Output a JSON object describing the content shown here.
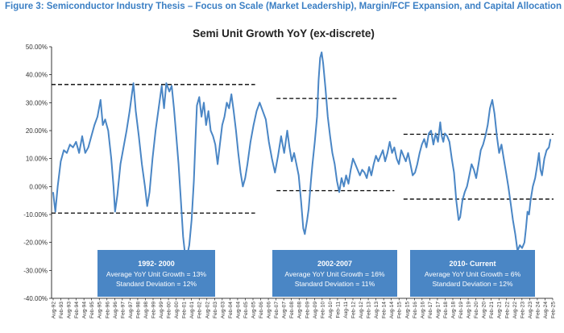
{
  "figure_title": "Figure 3: Semiconductor Industry Thesis – Focus on Scale (Market Leadership), Margin/FCF Expansion, and Capital Allocation",
  "colors": {
    "line": "#4a86c5",
    "box": "#4a86c5",
    "title_blue": "#3b7fc4",
    "axis": "#000000",
    "dash": "#000000"
  },
  "chart_data": {
    "type": "line",
    "title": "Semi Unit Growth YoY (ex-discrete)",
    "xlabel": "",
    "ylabel": "",
    "ylim": [
      -40,
      50
    ],
    "ytick_values": [
      50,
      40,
      30,
      20,
      10,
      0,
      -10,
      -20,
      -30,
      -40
    ],
    "ytick_labels": [
      "50.00%",
      "40.00%",
      "30.00%",
      "20.00%",
      "10.00%",
      "0.00%",
      "-10.00%",
      "-20.00%",
      "-30.00%",
      "-40.00%"
    ],
    "x_start": "Aug-92",
    "x_end": "Feb-25",
    "x_tick_labels": [
      "Aug-92",
      "Feb-93",
      "Aug-93",
      "Feb-94",
      "Aug-94",
      "Feb-95",
      "Aug-95",
      "Feb-96",
      "Aug-96",
      "Feb-97",
      "Aug-97",
      "Feb-98",
      "Aug-98",
      "Feb-99",
      "Aug-99",
      "Feb-00",
      "Aug-00",
      "Feb-01",
      "Aug-01",
      "Feb-02",
      "Aug-02",
      "Feb-03",
      "Aug-03",
      "Feb-04",
      "Aug-04",
      "Feb-05",
      "Aug-05",
      "Feb-06",
      "Aug-06",
      "Feb-07",
      "Aug-07",
      "Feb-08",
      "Aug-08",
      "Feb-09",
      "Aug-09",
      "Feb-10",
      "Aug-10",
      "Feb-11",
      "Aug-11",
      "Feb-12",
      "Aug-12",
      "Feb-13",
      "Aug-13",
      "Feb-14",
      "Aug-14",
      "Feb-15",
      "Aug-15",
      "Feb-16",
      "Aug-16",
      "Feb-17",
      "Aug-17",
      "Feb-18",
      "Aug-18",
      "Feb-19",
      "Aug-19",
      "Feb-20",
      "Aug-20",
      "Feb-21",
      "Aug-21",
      "Feb-22",
      "Aug-22",
      "Feb-23",
      "Aug-23",
      "Feb-24",
      "Aug-24",
      "Feb-25"
    ],
    "series": [
      {
        "name": "Semi Unit Growth YoY (ex-discrete)",
        "points": [
          [
            1992.6,
            -2
          ],
          [
            1992.75,
            -9
          ],
          [
            1992.9,
            0
          ],
          [
            1993.1,
            9
          ],
          [
            1993.3,
            13
          ],
          [
            1993.5,
            12
          ],
          [
            1993.7,
            15
          ],
          [
            1993.9,
            14
          ],
          [
            1994.1,
            16
          ],
          [
            1994.3,
            12
          ],
          [
            1994.5,
            18
          ],
          [
            1994.7,
            12
          ],
          [
            1994.9,
            14
          ],
          [
            1995.1,
            18
          ],
          [
            1995.3,
            22
          ],
          [
            1995.5,
            25
          ],
          [
            1995.7,
            31
          ],
          [
            1995.85,
            22
          ],
          [
            1996.0,
            24
          ],
          [
            1996.2,
            20
          ],
          [
            1996.4,
            10
          ],
          [
            1996.55,
            0
          ],
          [
            1996.65,
            -9
          ],
          [
            1996.8,
            -3
          ],
          [
            1997.0,
            8
          ],
          [
            1997.2,
            14
          ],
          [
            1997.4,
            20
          ],
          [
            1997.6,
            27
          ],
          [
            1997.75,
            33
          ],
          [
            1997.85,
            37
          ],
          [
            1998.0,
            27
          ],
          [
            1998.2,
            18
          ],
          [
            1998.4,
            8
          ],
          [
            1998.6,
            0
          ],
          [
            1998.75,
            -7
          ],
          [
            1998.9,
            -2
          ],
          [
            1999.1,
            10
          ],
          [
            1999.3,
            20
          ],
          [
            1999.5,
            28
          ],
          [
            1999.7,
            36
          ],
          [
            1999.85,
            28
          ],
          [
            2000.0,
            37
          ],
          [
            2000.2,
            34
          ],
          [
            2000.35,
            36
          ],
          [
            2000.5,
            28
          ],
          [
            2000.65,
            18
          ],
          [
            2000.8,
            8
          ],
          [
            2000.95,
            -5
          ],
          [
            2001.1,
            -18
          ],
          [
            2001.2,
            -23
          ],
          [
            2001.35,
            -25
          ],
          [
            2001.5,
            -21
          ],
          [
            2001.65,
            -12
          ],
          [
            2001.8,
            2
          ],
          [
            2001.9,
            16
          ],
          [
            2002.0,
            29
          ],
          [
            2002.15,
            32
          ],
          [
            2002.3,
            25
          ],
          [
            2002.45,
            30
          ],
          [
            2002.6,
            22
          ],
          [
            2002.75,
            27
          ],
          [
            2002.9,
            20
          ],
          [
            2003.05,
            18
          ],
          [
            2003.2,
            15
          ],
          [
            2003.35,
            8
          ],
          [
            2003.5,
            15
          ],
          [
            2003.65,
            22
          ],
          [
            2003.8,
            25
          ],
          [
            2003.95,
            30
          ],
          [
            2004.1,
            28
          ],
          [
            2004.25,
            33
          ],
          [
            2004.4,
            27
          ],
          [
            2004.55,
            20
          ],
          [
            2004.7,
            12
          ],
          [
            2004.85,
            5
          ],
          [
            2005.0,
            0
          ],
          [
            2005.15,
            3
          ],
          [
            2005.3,
            8
          ],
          [
            2005.5,
            16
          ],
          [
            2005.7,
            22
          ],
          [
            2005.9,
            27
          ],
          [
            2006.1,
            30
          ],
          [
            2006.3,
            27
          ],
          [
            2006.5,
            24
          ],
          [
            2006.7,
            16
          ],
          [
            2006.9,
            10
          ],
          [
            2007.1,
            5
          ],
          [
            2007.3,
            11
          ],
          [
            2007.5,
            18
          ],
          [
            2007.7,
            12
          ],
          [
            2007.9,
            20
          ],
          [
            2008.05,
            14
          ],
          [
            2008.2,
            9
          ],
          [
            2008.35,
            12
          ],
          [
            2008.5,
            8
          ],
          [
            2008.65,
            4
          ],
          [
            2008.8,
            -5
          ],
          [
            2008.95,
            -15
          ],
          [
            2009.05,
            -17
          ],
          [
            2009.2,
            -12
          ],
          [
            2009.3,
            -8
          ],
          [
            2009.45,
            2
          ],
          [
            2009.55,
            8
          ],
          [
            2009.7,
            16
          ],
          [
            2009.85,
            25
          ],
          [
            2009.95,
            38
          ],
          [
            2010.05,
            46
          ],
          [
            2010.15,
            48
          ],
          [
            2010.25,
            44
          ],
          [
            2010.4,
            35
          ],
          [
            2010.55,
            25
          ],
          [
            2010.7,
            18
          ],
          [
            2010.85,
            12
          ],
          [
            2011.0,
            8
          ],
          [
            2011.15,
            2
          ],
          [
            2011.3,
            -2
          ],
          [
            2011.45,
            3
          ],
          [
            2011.6,
            0
          ],
          [
            2011.75,
            4
          ],
          [
            2011.9,
            1
          ],
          [
            2012.05,
            6
          ],
          [
            2012.2,
            10
          ],
          [
            2012.35,
            8
          ],
          [
            2012.5,
            6
          ],
          [
            2012.65,
            4
          ],
          [
            2012.8,
            6
          ],
          [
            2012.95,
            5
          ],
          [
            2013.1,
            3
          ],
          [
            2013.25,
            7
          ],
          [
            2013.4,
            4
          ],
          [
            2013.55,
            8
          ],
          [
            2013.7,
            11
          ],
          [
            2013.85,
            9
          ],
          [
            2014.0,
            11
          ],
          [
            2014.15,
            13
          ],
          [
            2014.3,
            9
          ],
          [
            2014.45,
            12
          ],
          [
            2014.6,
            16
          ],
          [
            2014.75,
            12
          ],
          [
            2014.9,
            14
          ],
          [
            2015.05,
            10
          ],
          [
            2015.2,
            8
          ],
          [
            2015.35,
            13
          ],
          [
            2015.5,
            11
          ],
          [
            2015.65,
            9
          ],
          [
            2015.8,
            12
          ],
          [
            2015.95,
            8
          ],
          [
            2016.1,
            4
          ],
          [
            2016.25,
            5
          ],
          [
            2016.4,
            8
          ],
          [
            2016.55,
            12
          ],
          [
            2016.7,
            15
          ],
          [
            2016.85,
            17
          ],
          [
            2017.0,
            14
          ],
          [
            2017.15,
            19
          ],
          [
            2017.3,
            20
          ],
          [
            2017.45,
            15
          ],
          [
            2017.6,
            19
          ],
          [
            2017.75,
            16
          ],
          [
            2017.9,
            23
          ],
          [
            2018.0,
            18
          ],
          [
            2018.1,
            16
          ],
          [
            2018.2,
            19
          ],
          [
            2018.35,
            18
          ],
          [
            2018.5,
            16
          ],
          [
            2018.65,
            10
          ],
          [
            2018.8,
            5
          ],
          [
            2018.95,
            -5
          ],
          [
            2019.1,
            -12
          ],
          [
            2019.2,
            -11
          ],
          [
            2019.35,
            -5
          ],
          [
            2019.5,
            -2
          ],
          [
            2019.65,
            0
          ],
          [
            2019.8,
            4
          ],
          [
            2019.95,
            8
          ],
          [
            2020.1,
            6
          ],
          [
            2020.25,
            3
          ],
          [
            2020.4,
            8
          ],
          [
            2020.55,
            13
          ],
          [
            2020.7,
            15
          ],
          [
            2020.85,
            18
          ],
          [
            2021.0,
            22
          ],
          [
            2021.15,
            28
          ],
          [
            2021.3,
            31
          ],
          [
            2021.45,
            26
          ],
          [
            2021.6,
            18
          ],
          [
            2021.75,
            12
          ],
          [
            2021.9,
            15
          ],
          [
            2022.05,
            10
          ],
          [
            2022.2,
            5
          ],
          [
            2022.35,
            0
          ],
          [
            2022.5,
            -6
          ],
          [
            2022.65,
            -12
          ],
          [
            2022.8,
            -17
          ],
          [
            2022.95,
            -23
          ],
          [
            2023.1,
            -21
          ],
          [
            2023.25,
            -22
          ],
          [
            2023.4,
            -20
          ],
          [
            2023.5,
            -15
          ],
          [
            2023.6,
            -9
          ],
          [
            2023.7,
            -10
          ],
          [
            2023.8,
            -5
          ],
          [
            2023.95,
            0
          ],
          [
            2024.1,
            3
          ],
          [
            2024.25,
            8
          ],
          [
            2024.35,
            12
          ],
          [
            2024.45,
            6
          ],
          [
            2024.55,
            4
          ],
          [
            2024.7,
            10
          ],
          [
            2024.85,
            13
          ],
          [
            2025.0,
            14
          ],
          [
            2025.1,
            17
          ]
        ]
      }
    ],
    "reference_lines": [
      {
        "y": 36.5,
        "x_from": 1992.5,
        "x_to": 2005.8
      },
      {
        "y": -9.5,
        "x_from": 1992.5,
        "x_to": 2005.8
      },
      {
        "y": 31.5,
        "x_from": 2007.2,
        "x_to": 2015.1
      },
      {
        "y": -1.5,
        "x_from": 2007.2,
        "x_to": 2014.9
      },
      {
        "y": 18.7,
        "x_from": 2015.5,
        "x_to": 2025.3
      },
      {
        "y": -4.5,
        "x_from": 2015.5,
        "x_to": 2025.3
      }
    ],
    "annotations": [
      {
        "period": "1992- 2000",
        "average": "Average YoY Unit Growth = 13%",
        "std": "Standard Deviation = 12%"
      },
      {
        "period": "2002-2007",
        "average": "Average YoY Unit Growth = 16%",
        "std": "Standard Deviation = 11%"
      },
      {
        "period": "2010- Current",
        "average": "Average YoY Unit Growth = 6%",
        "std": "Standard Deviation = 12%"
      }
    ]
  }
}
